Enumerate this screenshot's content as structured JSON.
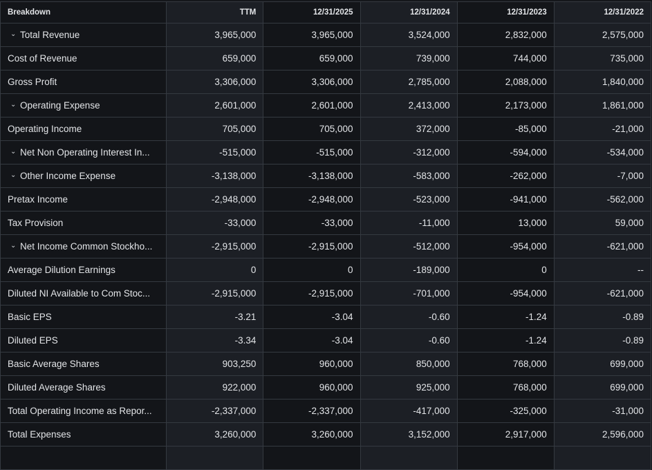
{
  "header": [
    "Breakdown",
    "TTM",
    "12/31/2025",
    "12/31/2024",
    "12/31/2023",
    "12/31/2022"
  ],
  "rows": [
    {
      "label": "Total Revenue",
      "expandable": true,
      "values": [
        "3,965,000",
        "3,965,000",
        "3,524,000",
        "2,832,000",
        "2,575,000"
      ]
    },
    {
      "label": "Cost of Revenue",
      "expandable": false,
      "values": [
        "659,000",
        "659,000",
        "739,000",
        "744,000",
        "735,000"
      ]
    },
    {
      "label": "Gross Profit",
      "expandable": false,
      "values": [
        "3,306,000",
        "3,306,000",
        "2,785,000",
        "2,088,000",
        "1,840,000"
      ]
    },
    {
      "label": "Operating Expense",
      "expandable": true,
      "values": [
        "2,601,000",
        "2,601,000",
        "2,413,000",
        "2,173,000",
        "1,861,000"
      ]
    },
    {
      "label": "Operating Income",
      "expandable": false,
      "values": [
        "705,000",
        "705,000",
        "372,000",
        "-85,000",
        "-21,000"
      ]
    },
    {
      "label": "Net Non Operating Interest In...",
      "expandable": true,
      "values": [
        "-515,000",
        "-515,000",
        "-312,000",
        "-594,000",
        "-534,000"
      ]
    },
    {
      "label": "Other Income Expense",
      "expandable": true,
      "values": [
        "-3,138,000",
        "-3,138,000",
        "-583,000",
        "-262,000",
        "-7,000"
      ]
    },
    {
      "label": "Pretax Income",
      "expandable": false,
      "values": [
        "-2,948,000",
        "-2,948,000",
        "-523,000",
        "-941,000",
        "-562,000"
      ]
    },
    {
      "label": "Tax Provision",
      "expandable": false,
      "values": [
        "-33,000",
        "-33,000",
        "-11,000",
        "13,000",
        "59,000"
      ]
    },
    {
      "label": "Net Income Common Stockho...",
      "expandable": true,
      "values": [
        "-2,915,000",
        "-2,915,000",
        "-512,000",
        "-954,000",
        "-621,000"
      ]
    },
    {
      "label": "Average Dilution Earnings",
      "expandable": false,
      "values": [
        "0",
        "0",
        "-189,000",
        "0",
        "--"
      ]
    },
    {
      "label": "Diluted NI Available to Com Stoc...",
      "expandable": false,
      "values": [
        "-2,915,000",
        "-2,915,000",
        "-701,000",
        "-954,000",
        "-621,000"
      ]
    },
    {
      "label": "Basic EPS",
      "expandable": false,
      "values": [
        "-3.21",
        "-3.04",
        "-0.60",
        "-1.24",
        "-0.89"
      ]
    },
    {
      "label": "Diluted EPS",
      "expandable": false,
      "values": [
        "-3.34",
        "-3.04",
        "-0.60",
        "-1.24",
        "-0.89"
      ]
    },
    {
      "label": "Basic Average Shares",
      "expandable": false,
      "values": [
        "903,250",
        "960,000",
        "850,000",
        "768,000",
        "699,000"
      ]
    },
    {
      "label": "Diluted Average Shares",
      "expandable": false,
      "values": [
        "922,000",
        "960,000",
        "925,000",
        "768,000",
        "699,000"
      ]
    },
    {
      "label": "Total Operating Income as Repor...",
      "expandable": false,
      "values": [
        "-2,337,000",
        "-2,337,000",
        "-417,000",
        "-325,000",
        "-31,000"
      ]
    },
    {
      "label": "Total Expenses",
      "expandable": false,
      "values": [
        "3,260,000",
        "3,260,000",
        "3,152,000",
        "2,917,000",
        "2,596,000"
      ]
    },
    {
      "label": "",
      "expandable": false,
      "values": [
        "",
        "",
        "",
        "",
        ""
      ]
    }
  ]
}
